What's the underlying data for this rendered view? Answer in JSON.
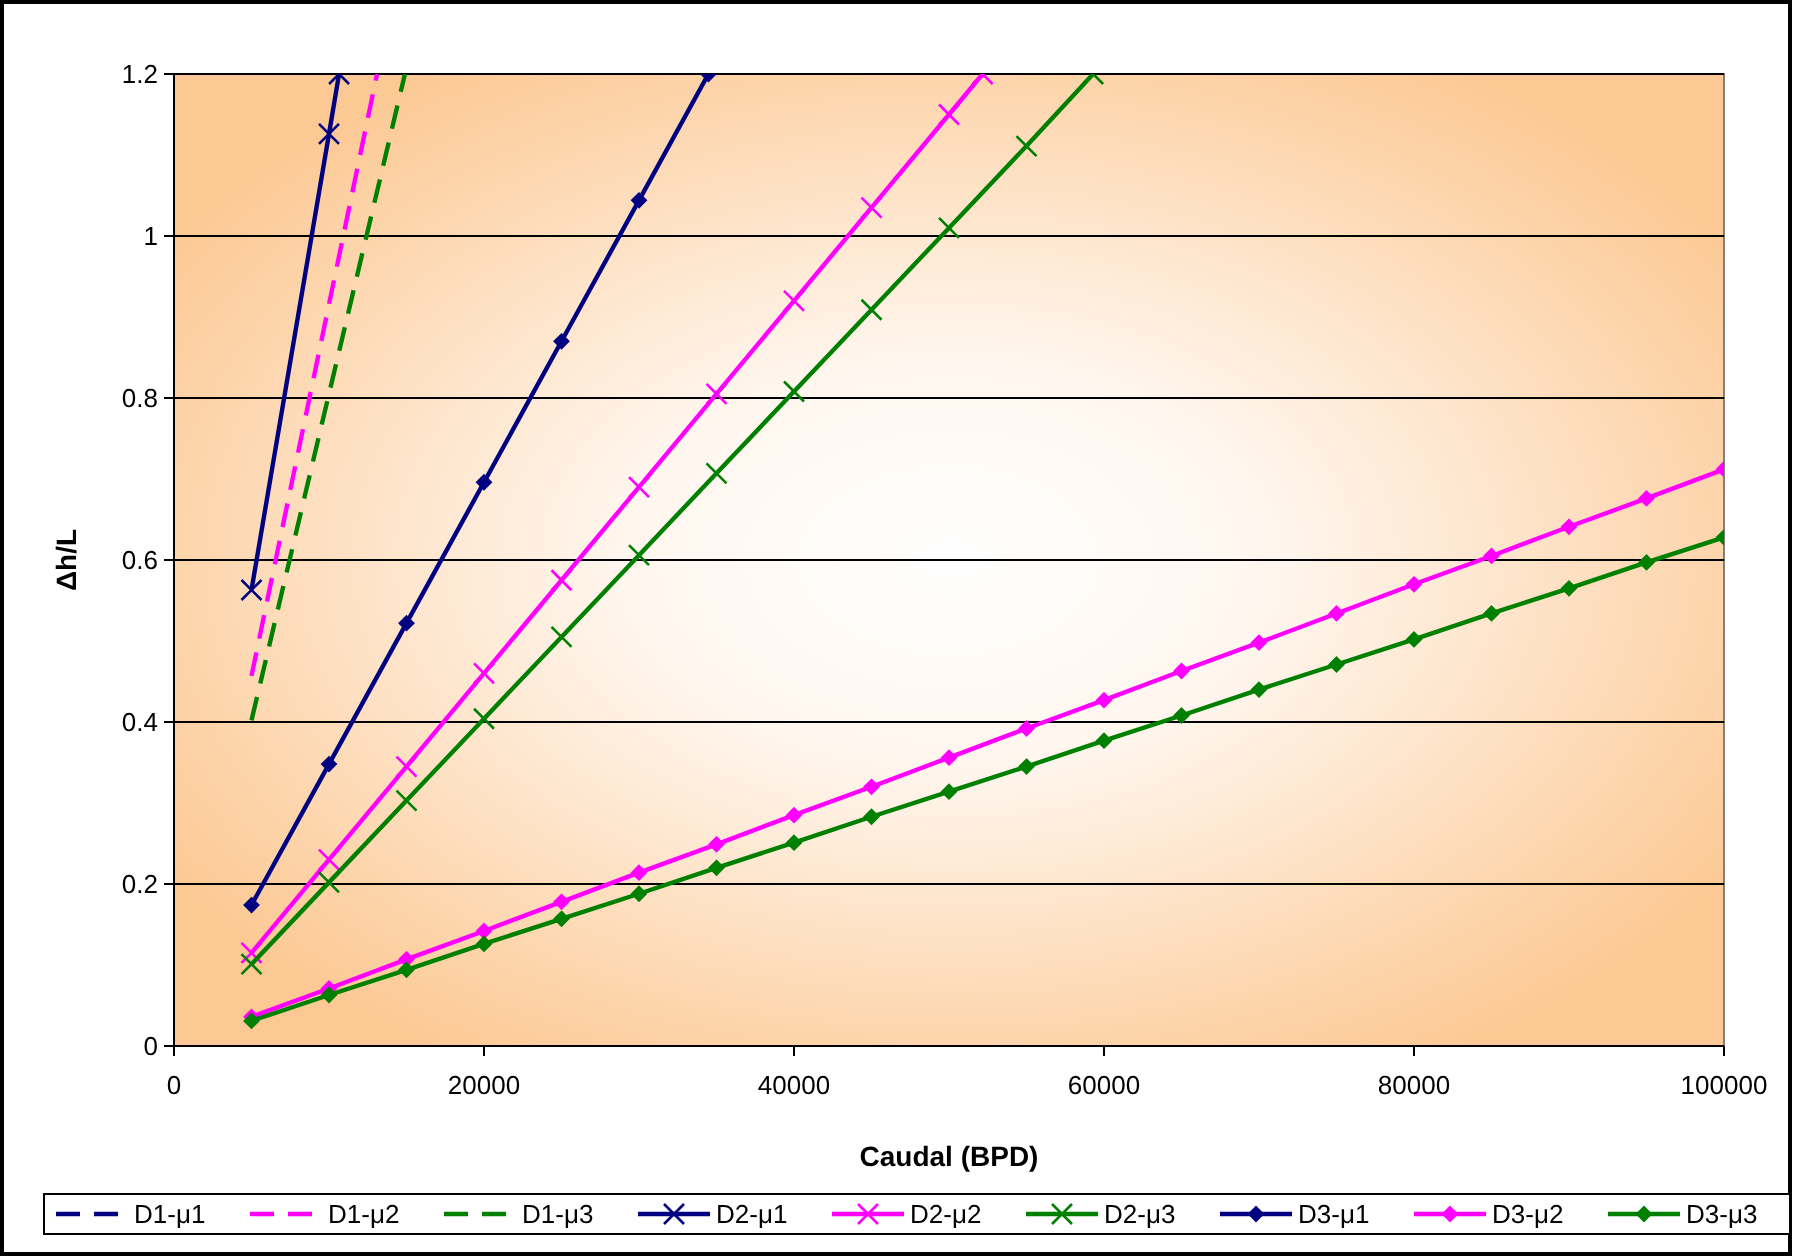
{
  "chart_data": {
    "type": "line",
    "xlabel": "Caudal (BPD)",
    "ylabel": "Δh/L",
    "xlim": [
      0,
      100000
    ],
    "xticks": [
      0,
      20000,
      40000,
      60000,
      80000,
      100000
    ],
    "ylim": [
      0,
      1.2
    ],
    "yticks": [
      0,
      0.2,
      0.4,
      0.6,
      0.8,
      1,
      1.2
    ],
    "grid": "y",
    "legend": "bottom",
    "series": [
      {
        "name": "D1-μ1",
        "color": "#000080",
        "line_style": "dashed",
        "marker": "none"
      },
      {
        "name": "D1-μ2",
        "color": "#ff00ff",
        "line_style": "dashed",
        "marker": "none",
        "x": [
          5000,
          13100
        ],
        "values": [
          0.457,
          1.2
        ]
      },
      {
        "name": "D1-μ3",
        "color": "#008000",
        "line_style": "dashed",
        "marker": "none",
        "x": [
          5000,
          14900
        ],
        "values": [
          0.402,
          1.2
        ]
      },
      {
        "name": "D2-μ1",
        "color": "#000080",
        "line_style": "solid",
        "marker": "cross",
        "x": [
          5000,
          10000,
          10650
        ],
        "values": [
          0.563,
          1.126,
          1.2
        ]
      },
      {
        "name": "D2-μ2",
        "color": "#ff00ff",
        "line_style": "solid",
        "marker": "cross",
        "x": [
          5000,
          10000,
          15000,
          20000,
          25000,
          30000,
          35000,
          40000,
          45000,
          50000,
          52170
        ],
        "values": [
          0.115,
          0.23,
          0.345,
          0.46,
          0.575,
          0.69,
          0.805,
          0.92,
          1.035,
          1.15,
          1.2
        ]
      },
      {
        "name": "D2-μ3",
        "color": "#008000",
        "line_style": "solid",
        "marker": "cross",
        "x": [
          5000,
          10000,
          15000,
          20000,
          25000,
          30000,
          35000,
          40000,
          45000,
          50000,
          55000,
          59300
        ],
        "values": [
          0.101,
          0.202,
          0.303,
          0.404,
          0.505,
          0.606,
          0.707,
          0.808,
          0.909,
          1.01,
          1.111,
          1.2
        ]
      },
      {
        "name": "D3-μ1",
        "color": "#000080",
        "line_style": "solid",
        "marker": "diamond",
        "x": [
          5000,
          10000,
          15000,
          20000,
          25000,
          30000,
          34480
        ],
        "values": [
          0.174,
          0.348,
          0.522,
          0.696,
          0.87,
          1.044,
          1.2
        ]
      },
      {
        "name": "D3-μ2",
        "color": "#ff00ff",
        "line_style": "solid",
        "marker": "diamond",
        "x": [
          5000,
          10000,
          15000,
          20000,
          25000,
          30000,
          35000,
          40000,
          45000,
          50000,
          55000,
          60000,
          65000,
          70000,
          75000,
          80000,
          85000,
          90000,
          95000,
          100000
        ],
        "values": [
          0.036,
          0.071,
          0.107,
          0.142,
          0.178,
          0.214,
          0.249,
          0.285,
          0.32,
          0.356,
          0.392,
          0.427,
          0.463,
          0.498,
          0.534,
          0.57,
          0.605,
          0.641,
          0.676,
          0.712
        ]
      },
      {
        "name": "D3-μ3",
        "color": "#008000",
        "line_style": "solid",
        "marker": "diamond",
        "x": [
          5000,
          10000,
          15000,
          20000,
          25000,
          30000,
          35000,
          40000,
          45000,
          50000,
          55000,
          60000,
          65000,
          70000,
          75000,
          80000,
          85000,
          90000,
          95000,
          100000
        ],
        "values": [
          0.031,
          0.063,
          0.094,
          0.126,
          0.157,
          0.188,
          0.22,
          0.251,
          0.283,
          0.314,
          0.345,
          0.377,
          0.408,
          0.44,
          0.471,
          0.502,
          0.534,
          0.565,
          0.597,
          0.628
        ]
      }
    ]
  }
}
